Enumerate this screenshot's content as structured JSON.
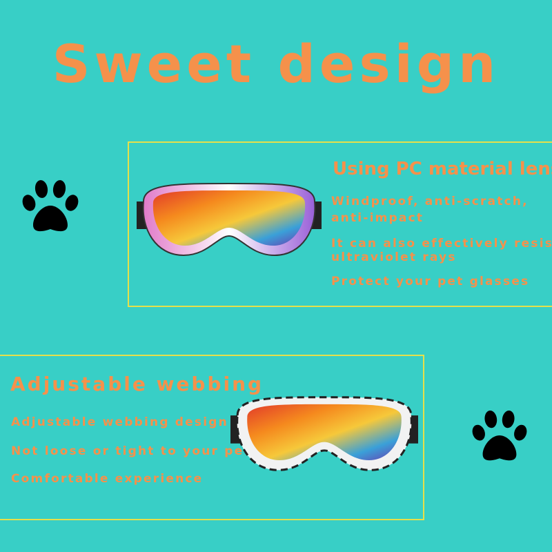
{
  "title": "Sweet design",
  "section1": {
    "heading": "Using PC material lens",
    "lines": [
      "Windproof, anti-scratch,",
      "anti-impact",
      "It can also effectively resist",
      "ultraviolet rays",
      "Protect your pet glasses"
    ]
  },
  "section2": {
    "heading": "Adjustable webbing",
    "lines": [
      "Adjustable webbing design",
      "Not loose or tight to your pet",
      "Comfortable experience"
    ]
  },
  "colors": {
    "background": "#38cfc6",
    "text": "#f5914b",
    "border": "#e6e04a"
  },
  "icons": [
    "paw-icon",
    "goggles-image"
  ]
}
